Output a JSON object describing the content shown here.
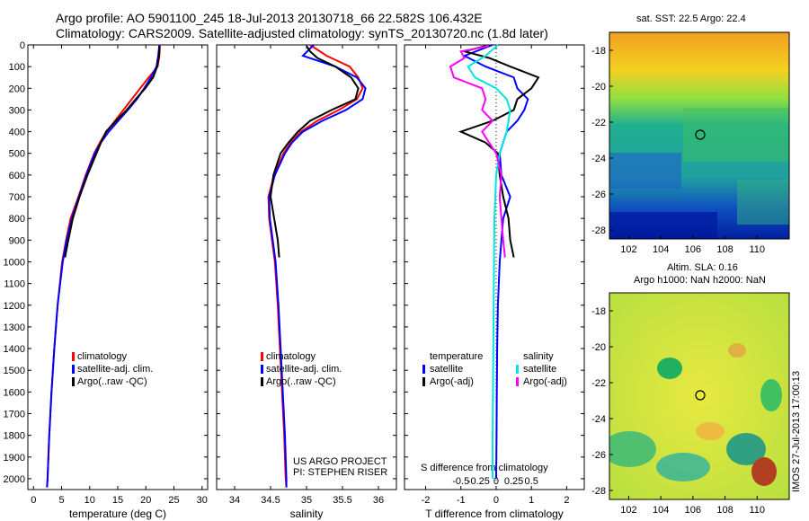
{
  "header": {
    "title_line1": "Argo profile: AO 5901100_245 18-Jul-2013 20130718_66 22.582S 106.432E",
    "title_line2": "Climatology: CARS2009. Satellite-adjusted climatology: synTS_20130720.nc (1.8d later)"
  },
  "maps": {
    "sst_title": "sat. SST: 22.5 Argo: 22.4",
    "sla_title_line1": "Altim. SLA: 0.16",
    "sla_title_line2": "Argo h1000: NaN h2000: NaN",
    "lat_ticks": [
      -18,
      -20,
      -22,
      -24,
      -26,
      -28
    ],
    "lon_ticks": [
      102,
      104,
      106,
      108,
      110
    ],
    "argo_position": {
      "lon": 106.432,
      "lat": -22.582
    }
  },
  "footer": {
    "credit_line1": "US ARGO PROJECT",
    "credit_line2": "PI: STEPHEN RISER",
    "imos_label": "IMOS 27-Jul-2013 17:00:13"
  },
  "colors": {
    "climatology": "#ff0000",
    "satellite": "#0000ff",
    "argo": "#000000",
    "sat_salinity": "#00e5e5",
    "argo_salinity": "#ff00ff"
  },
  "chart_data": [
    {
      "type": "line",
      "xlabel": "temperature (deg C)",
      "ylabel": "",
      "xlim": [
        -1,
        31
      ],
      "ylim": [
        2050,
        0
      ],
      "xticks": [
        0,
        5,
        10,
        15,
        20,
        25,
        30
      ],
      "yticks": [
        0,
        100,
        200,
        300,
        400,
        500,
        600,
        700,
        800,
        900,
        1000,
        1100,
        1200,
        1300,
        1400,
        1500,
        1600,
        1700,
        1800,
        1900,
        2000
      ],
      "legend": [
        "climatology",
        "satellite-adj. clim.",
        "Argo(..raw -QC)"
      ],
      "series": [
        {
          "name": "climatology",
          "y": [
            0,
            50,
            100,
            150,
            200,
            250,
            300,
            350,
            400,
            450,
            500,
            600,
            700,
            800,
            900,
            1000,
            1200,
            1400,
            1600,
            1800,
            2000,
            2040
          ],
          "x": [
            22.5,
            22.4,
            22.1,
            20.5,
            19.0,
            17.5,
            16.0,
            14.5,
            13.0,
            11.8,
            10.8,
            9.3,
            8.0,
            6.6,
            5.8,
            5.1,
            4.3,
            3.7,
            3.2,
            2.8,
            2.5,
            2.4
          ]
        },
        {
          "name": "satellite-adj. clim.",
          "y": [
            0,
            50,
            100,
            150,
            200,
            250,
            300,
            350,
            400,
            450,
            500,
            600,
            700,
            800,
            900,
            1000,
            1200,
            1400,
            1600,
            1800,
            2000,
            2040
          ],
          "x": [
            22.4,
            22.2,
            21.9,
            20.9,
            19.7,
            18.4,
            16.8,
            15.1,
            13.4,
            12.0,
            10.9,
            9.4,
            8.1,
            6.8,
            5.9,
            5.2,
            4.3,
            3.7,
            3.2,
            2.8,
            2.5,
            2.4
          ]
        },
        {
          "name": "Argo(..raw -QC)",
          "y": [
            5,
            30,
            60,
            100,
            150,
            200,
            250,
            300,
            350,
            400,
            450,
            500,
            600,
            700,
            800,
            900,
            980
          ],
          "x": [
            22.4,
            22.4,
            22.3,
            22.0,
            21.3,
            19.9,
            18.2,
            16.6,
            14.7,
            12.9,
            12.0,
            11.2,
            9.6,
            8.2,
            7.0,
            6.2,
            5.6
          ]
        }
      ]
    },
    {
      "type": "line",
      "xlabel": "salinity",
      "ylabel": "",
      "xlim": [
        33.75,
        36.25
      ],
      "ylim": [
        2050,
        0
      ],
      "xticks": [
        34,
        34.5,
        35,
        35.5,
        36
      ],
      "legend": [
        "climatology",
        "satellite-adj. clim.",
        "Argo(..raw -QC)"
      ],
      "series": [
        {
          "name": "climatology",
          "y": [
            0,
            50,
            100,
            150,
            200,
            250,
            300,
            350,
            400,
            450,
            500,
            600,
            700,
            800,
            900,
            1000,
            1200,
            1400,
            1600,
            1800,
            2000,
            2040
          ],
          "x": [
            35.05,
            35.28,
            35.6,
            35.72,
            35.78,
            35.7,
            35.45,
            35.15,
            34.92,
            34.78,
            34.68,
            34.55,
            34.47,
            34.48,
            34.52,
            34.56,
            34.6,
            34.63,
            34.66,
            34.69,
            34.71,
            34.72
          ]
        },
        {
          "name": "satellite-adj. clim.",
          "y": [
            0,
            50,
            100,
            150,
            200,
            250,
            300,
            350,
            400,
            450,
            500,
            600,
            700,
            800,
            900,
            1000,
            1200,
            1400,
            1600,
            1800,
            2000,
            2040
          ],
          "x": [
            35.1,
            34.95,
            35.4,
            35.7,
            35.82,
            35.78,
            35.55,
            35.22,
            34.95,
            34.8,
            34.7,
            34.56,
            34.48,
            34.49,
            34.53,
            34.57,
            34.61,
            34.64,
            34.67,
            34.7,
            34.72,
            34.72
          ]
        },
        {
          "name": "Argo(..raw -QC)",
          "y": [
            5,
            30,
            60,
            100,
            150,
            200,
            250,
            300,
            350,
            400,
            450,
            500,
            600,
            700,
            800,
            900,
            980
          ],
          "x": [
            35.0,
            35.05,
            35.15,
            35.4,
            35.62,
            35.72,
            35.68,
            35.35,
            35.05,
            34.88,
            34.75,
            34.64,
            34.54,
            34.5,
            34.55,
            34.6,
            34.62
          ]
        }
      ]
    },
    {
      "type": "line",
      "xlabel": "T difference from climatology",
      "ylabel": "",
      "xlim": [
        -2.6,
        2.5
      ],
      "ylim": [
        2050,
        0
      ],
      "xticks": [
        -2,
        -1,
        0,
        1,
        2
      ],
      "secondary_xlabel": "S difference from climatology",
      "secondary_xticks": [
        "-0.5",
        "-0.25",
        "0",
        "0.25",
        "0.5"
      ],
      "legend": [
        {
          "group": "temperature",
          "items": [
            "satellite",
            "Argo(-adj)"
          ]
        },
        {
          "group": "salinity",
          "items": [
            "satellite",
            "Argo(-adj)"
          ]
        }
      ],
      "series": [
        {
          "name": "satellite",
          "group": "temperature",
          "y": [
            0,
            50,
            100,
            150,
            200,
            250,
            300,
            350,
            400,
            450,
            500,
            600,
            700,
            800,
            900,
            1000,
            1200,
            1400,
            1600,
            1800,
            2000
          ],
          "x": [
            -0.1,
            -0.9,
            -0.3,
            0.5,
            0.6,
            0.9,
            0.8,
            0.6,
            0.3,
            0.2,
            0.1,
            0.15,
            0.4,
            0.2,
            0.15,
            0.1,
            0.05,
            0.03,
            0.02,
            0.01,
            0.0
          ]
        },
        {
          "name": "Argo(-adj)",
          "group": "temperature",
          "y": [
            5,
            30,
            60,
            100,
            150,
            200,
            250,
            300,
            350,
            400,
            450,
            500,
            600,
            700,
            800,
            900,
            980
          ],
          "x": [
            -0.3,
            -0.9,
            -0.2,
            0.4,
            1.2,
            1.0,
            0.6,
            0.5,
            -0.1,
            -1.0,
            -0.3,
            0.05,
            0.1,
            0.2,
            0.35,
            0.4,
            0.5
          ]
        },
        {
          "name": "satellite",
          "group": "salinity",
          "y": [
            0,
            50,
            100,
            150,
            200,
            250,
            300,
            400,
            500,
            600,
            800,
            1000,
            1200,
            1400,
            1600,
            1800,
            2000
          ],
          "x": [
            0.05,
            -0.3,
            -0.8,
            -0.6,
            0.0,
            0.3,
            0.4,
            0.3,
            0.1,
            0.0,
            -0.05,
            -0.06,
            -0.07,
            -0.08,
            -0.09,
            -0.1,
            -0.1
          ]
        },
        {
          "name": "Argo(-adj)",
          "group": "salinity",
          "y": [
            5,
            30,
            60,
            100,
            150,
            200,
            250,
            300,
            350,
            400,
            450,
            500,
            600,
            700,
            800,
            900,
            980
          ],
          "x": [
            -0.2,
            -1.0,
            -0.9,
            -1.3,
            -1.2,
            -0.4,
            -0.3,
            -0.4,
            -0.1,
            -0.4,
            -0.2,
            0.0,
            0.15,
            0.1,
            0.15,
            0.2,
            0.25
          ]
        }
      ]
    }
  ]
}
